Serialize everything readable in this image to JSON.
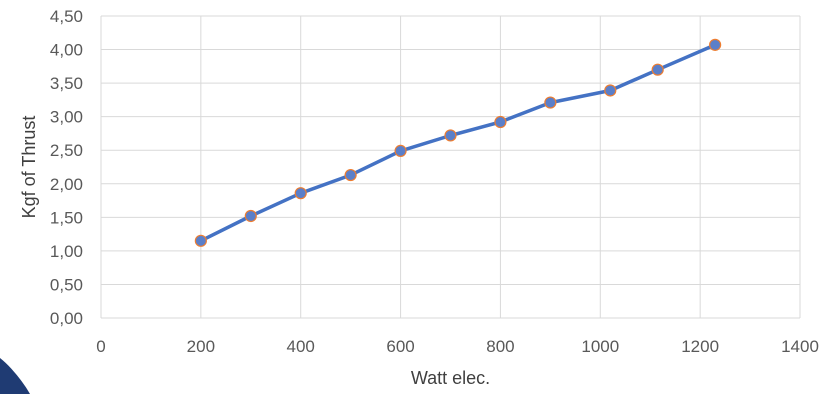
{
  "chart_data": {
    "type": "line",
    "title": "",
    "xlabel": "Watt elec.",
    "ylabel": "Kgf of Thrust",
    "xlim": [
      0,
      1400
    ],
    "ylim": [
      0,
      4.5
    ],
    "x_ticks": [
      "0",
      "200",
      "400",
      "600",
      "800",
      "1000",
      "1200",
      "1400"
    ],
    "y_ticks": [
      "0,00",
      "0,50",
      "1,00",
      "1,50",
      "2,00",
      "2,50",
      "3,00",
      "3,50",
      "4,00",
      "4,50"
    ],
    "grid": true,
    "legend": "none",
    "series": [
      {
        "x": [
          200,
          300,
          400,
          500,
          600,
          700,
          800,
          900,
          1020,
          1115,
          1230
        ],
        "y": [
          1.15,
          1.52,
          1.86,
          2.13,
          2.49,
          2.72,
          2.92,
          3.21,
          3.39,
          3.7,
          4.07
        ],
        "color": "#4472c4",
        "marker_color": "#5b7fc9",
        "marker_edge_color": "#ed7d31"
      }
    ]
  }
}
